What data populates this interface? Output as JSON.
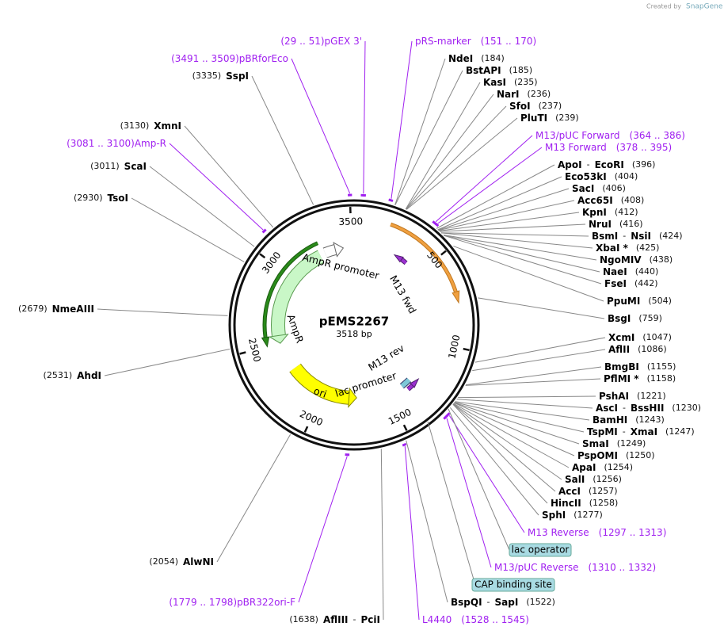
{
  "header": {
    "credit": "Created by",
    "brand": "SnapGene"
  },
  "plasmid": {
    "name": "pEMS2267",
    "size": {
      "value": 3518,
      "label": "3518 bp"
    },
    "ticks": [
      500,
      1000,
      1500,
      2000,
      2500,
      3000,
      3500
    ]
  },
  "separator": "-",
  "enzymes": [
    {
      "names": [
        "NdeI"
      ],
      "site": {
        "value": 184,
        "label": "(184)"
      }
    },
    {
      "names": [
        "BstAPI"
      ],
      "site": {
        "value": 185,
        "label": "(185)"
      }
    },
    {
      "names": [
        "KasI"
      ],
      "site": {
        "value": 235,
        "label": "(235)"
      }
    },
    {
      "names": [
        "NarI"
      ],
      "site": {
        "value": 236,
        "label": "(236)"
      }
    },
    {
      "names": [
        "SfoI"
      ],
      "site": {
        "value": 237,
        "label": "(237)"
      }
    },
    {
      "names": [
        "PluTI"
      ],
      "site": {
        "value": 239,
        "label": "(239)"
      }
    },
    {
      "names": [
        "ApoI",
        "EcoRI"
      ],
      "site": {
        "value": 396,
        "label": "(396)"
      }
    },
    {
      "names": [
        "Eco53kI"
      ],
      "site": {
        "value": 404,
        "label": "(404)"
      }
    },
    {
      "names": [
        "SacI"
      ],
      "site": {
        "value": 406,
        "label": "(406)"
      }
    },
    {
      "names": [
        "Acc65I"
      ],
      "site": {
        "value": 408,
        "label": "(408)"
      }
    },
    {
      "names": [
        "KpnI"
      ],
      "site": {
        "value": 412,
        "label": "(412)"
      }
    },
    {
      "names": [
        "NruI"
      ],
      "site": {
        "value": 416,
        "label": "(416)"
      }
    },
    {
      "names": [
        "BsmI",
        "NsiI"
      ],
      "site": {
        "value": 424,
        "label": "(424)"
      }
    },
    {
      "names": [
        "XbaI *"
      ],
      "site": {
        "value": 425,
        "label": "(425)"
      }
    },
    {
      "names": [
        "NgoMIV"
      ],
      "site": {
        "value": 438,
        "label": "(438)"
      }
    },
    {
      "names": [
        "NaeI"
      ],
      "site": {
        "value": 440,
        "label": "(440)"
      }
    },
    {
      "names": [
        "FseI"
      ],
      "site": {
        "value": 442,
        "label": "(442)"
      }
    },
    {
      "names": [
        "PpuMI"
      ],
      "site": {
        "value": 504,
        "label": "(504)"
      }
    },
    {
      "names": [
        "BsgI"
      ],
      "site": {
        "value": 759,
        "label": "(759)"
      }
    },
    {
      "names": [
        "XcmI"
      ],
      "site": {
        "value": 1047,
        "label": "(1047)"
      }
    },
    {
      "names": [
        "AflII"
      ],
      "site": {
        "value": 1086,
        "label": "(1086)"
      }
    },
    {
      "names": [
        "BmgBI"
      ],
      "site": {
        "value": 1155,
        "label": "(1155)"
      }
    },
    {
      "names": [
        "PflMI *"
      ],
      "site": {
        "value": 1158,
        "label": "(1158)"
      }
    },
    {
      "names": [
        "PshAI"
      ],
      "site": {
        "value": 1221,
        "label": "(1221)"
      }
    },
    {
      "names": [
        "AscI",
        "BssHII"
      ],
      "site": {
        "value": 1230,
        "label": "(1230)"
      }
    },
    {
      "names": [
        "BamHI"
      ],
      "site": {
        "value": 1243,
        "label": "(1243)"
      }
    },
    {
      "names": [
        "TspMI",
        "XmaI"
      ],
      "site": {
        "value": 1247,
        "label": "(1247)"
      }
    },
    {
      "names": [
        "SmaI"
      ],
      "site": {
        "value": 1249,
        "label": "(1249)"
      }
    },
    {
      "names": [
        "PspOMI"
      ],
      "site": {
        "value": 1250,
        "label": "(1250)"
      }
    },
    {
      "names": [
        "ApaI"
      ],
      "site": {
        "value": 1254,
        "label": "(1254)"
      }
    },
    {
      "names": [
        "SalI"
      ],
      "site": {
        "value": 1256,
        "label": "(1256)"
      }
    },
    {
      "names": [
        "AccI"
      ],
      "site": {
        "value": 1257,
        "label": "(1257)"
      }
    },
    {
      "names": [
        "HincII"
      ],
      "site": {
        "value": 1258,
        "label": "(1258)"
      }
    },
    {
      "names": [
        "SphI"
      ],
      "site": {
        "value": 1277,
        "label": "(1277)"
      }
    },
    {
      "names": [
        "BspQI",
        "SapI"
      ],
      "site": {
        "value": 1522,
        "label": "(1522)"
      }
    },
    {
      "names": [
        "AflIII",
        "PciI"
      ],
      "site": {
        "value": 1638,
        "label": "(1638)"
      }
    },
    {
      "names": [
        "AlwNI"
      ],
      "site": {
        "value": 2054,
        "label": "(2054)"
      }
    },
    {
      "names": [
        "AhdI"
      ],
      "site": {
        "value": 2531,
        "label": "(2531)"
      }
    },
    {
      "names": [
        "NmeAIII"
      ],
      "site": {
        "value": 2679,
        "label": "(2679)"
      }
    },
    {
      "names": [
        "TsoI"
      ],
      "site": {
        "value": 2930,
        "label": "(2930)"
      }
    },
    {
      "names": [
        "ScaI"
      ],
      "site": {
        "value": 3011,
        "label": "(3011)"
      }
    },
    {
      "names": [
        "XmnI"
      ],
      "site": {
        "value": 3130,
        "label": "(3130)"
      }
    },
    {
      "names": [
        "SspI"
      ],
      "site": {
        "value": 3335,
        "label": "(3335)"
      }
    }
  ],
  "primers": [
    {
      "name": "pGEX 3'",
      "range": {
        "start": 29,
        "end": 51,
        "label": "(29 .. 51)"
      }
    },
    {
      "name": "pRS-marker",
      "range": {
        "start": 151,
        "end": 170,
        "label": "(151 .. 170)"
      }
    },
    {
      "name": "M13/pUC Forward",
      "range": {
        "start": 364,
        "end": 386,
        "label": "(364 .. 386)"
      }
    },
    {
      "name": "M13 Forward",
      "range": {
        "start": 378,
        "end": 395,
        "label": "(378 .. 395)"
      }
    },
    {
      "name": "M13 Reverse",
      "range": {
        "start": 1297,
        "end": 1313,
        "label": "(1297 .. 1313)"
      }
    },
    {
      "name": "M13/pUC Reverse",
      "range": {
        "start": 1310,
        "end": 1332,
        "label": "(1310 .. 1332)"
      }
    },
    {
      "name": "L4440",
      "range": {
        "start": 1528,
        "end": 1545,
        "label": "(1528 .. 1545)"
      }
    },
    {
      "name": "pBR322ori-F",
      "range": {
        "start": 1779,
        "end": 1798,
        "label": "(1779 .. 1798)"
      }
    },
    {
      "name": "Amp-R",
      "range": {
        "start": 3081,
        "end": 3100,
        "label": "(3081 .. 3100)"
      }
    },
    {
      "name": "pBRforEco",
      "range": {
        "start": 3491,
        "end": 3509,
        "label": "(3491 .. 3509)"
      }
    }
  ],
  "boxed_features": [
    {
      "name": "lac operator"
    },
    {
      "name": "CAP binding site"
    }
  ],
  "map_features": [
    {
      "name": "AmpR promoter"
    },
    {
      "name": "AmpR"
    },
    {
      "name": "ori"
    },
    {
      "name": "lac promoter"
    },
    {
      "name": "M13 fwd"
    },
    {
      "name": "M13 rev"
    }
  ]
}
